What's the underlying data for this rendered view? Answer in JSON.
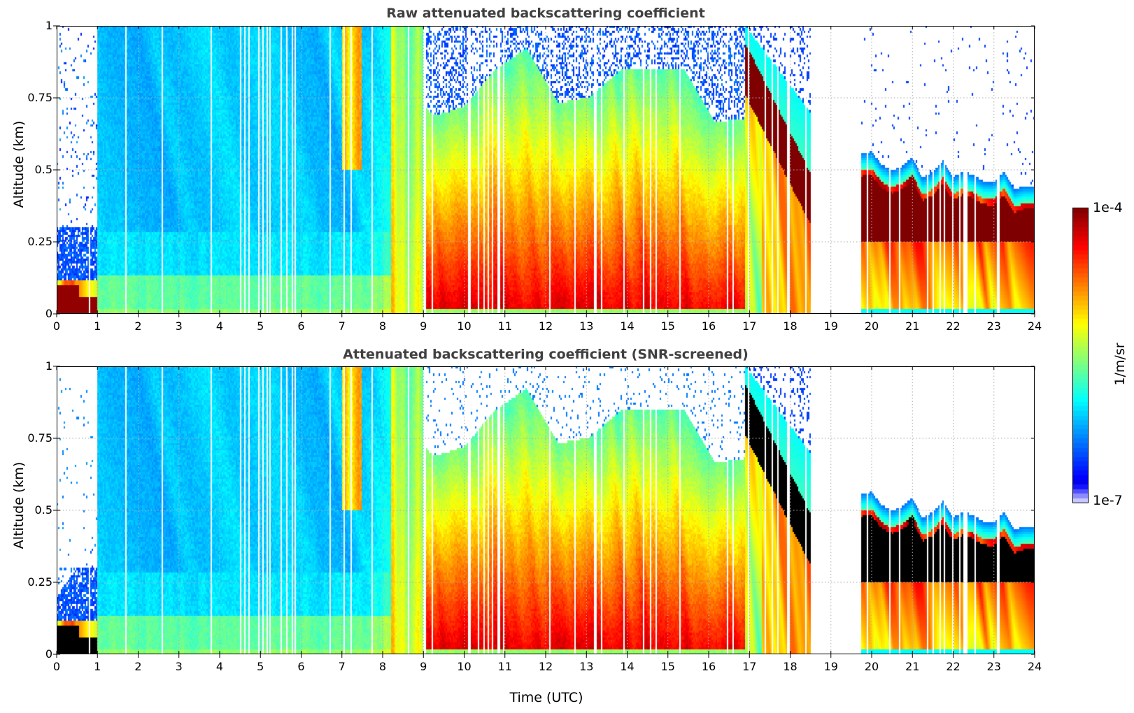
{
  "chart_data": [
    {
      "id": "raw",
      "type": "heatmap",
      "title": "Raw attenuated backscattering coefficient",
      "xlabel": "",
      "ylabel": "Altitude (km)",
      "xlim": [
        0,
        24
      ],
      "ylim": [
        0,
        1
      ],
      "xticks": [
        "0",
        "1",
        "2",
        "3",
        "4",
        "5",
        "6",
        "7",
        "8",
        "9",
        "10",
        "11",
        "12",
        "13",
        "14",
        "15",
        "16",
        "17",
        "18",
        "19",
        "20",
        "21",
        "22",
        "23",
        "24"
      ],
      "yticks": [
        "0",
        "0.25",
        "0.5",
        "0.75",
        "1"
      ],
      "grid": true,
      "data_gap_utc": [
        18.5,
        19.75
      ],
      "snr_screened": false,
      "regimes": [
        {
          "t": [
            0.0,
            1.0
          ],
          "description": "sparse noise aloft, strong low layer (~1e-4) below 0.1 km"
        },
        {
          "t": [
            1.0,
            8.2
          ],
          "description": "clear boundary layer, blue (~1e-6) aloft, cyan-green near surface"
        },
        {
          "t": [
            8.2,
            9.0
          ],
          "description": "transition, yellow-orange columns"
        },
        {
          "t": [
            9.0,
            16.9
          ],
          "description": "dense red/orange aerosol (~1e-5 to 1e-4), noisy tops near 0.6-1 km"
        },
        {
          "t": [
            16.9,
            18.5
          ],
          "description": "elevated dense layer descending from ~0.9 to ~0.3 km"
        },
        {
          "t": [
            19.75,
            24.0
          ],
          "description": "dense layer 0.25-0.45 km, top ~0.45-0.6 km"
        }
      ]
    },
    {
      "id": "screened",
      "type": "heatmap",
      "title": "Attenuated backscattering coefficient (SNR-screened)",
      "xlabel": "Time (UTC)",
      "ylabel": "Altitude (km)",
      "xlim": [
        0,
        24
      ],
      "ylim": [
        0,
        1
      ],
      "xticks": [
        "0",
        "1",
        "2",
        "3",
        "4",
        "5",
        "6",
        "7",
        "8",
        "9",
        "10",
        "11",
        "12",
        "13",
        "14",
        "15",
        "16",
        "17",
        "18",
        "19",
        "20",
        "21",
        "22",
        "23",
        "24"
      ],
      "yticks": [
        "0",
        "0.25",
        "0.5",
        "0.75",
        "1"
      ],
      "grid": true,
      "data_gap_utc": [
        18.5,
        19.75
      ],
      "snr_screened": true,
      "saturation_color": "#000000"
    }
  ],
  "colorbar": {
    "label": "1/m/sr",
    "min_label": "1e-7",
    "max_label": "1e-4",
    "scale": "log",
    "range": [
      1e-07,
      0.0001
    ],
    "colormap": "jet",
    "colors": [
      "#e6e6ff",
      "#0000ff",
      "#00e5ff",
      "#7dff7a",
      "#ffea00",
      "#ff3a00",
      "#7f0000"
    ]
  }
}
